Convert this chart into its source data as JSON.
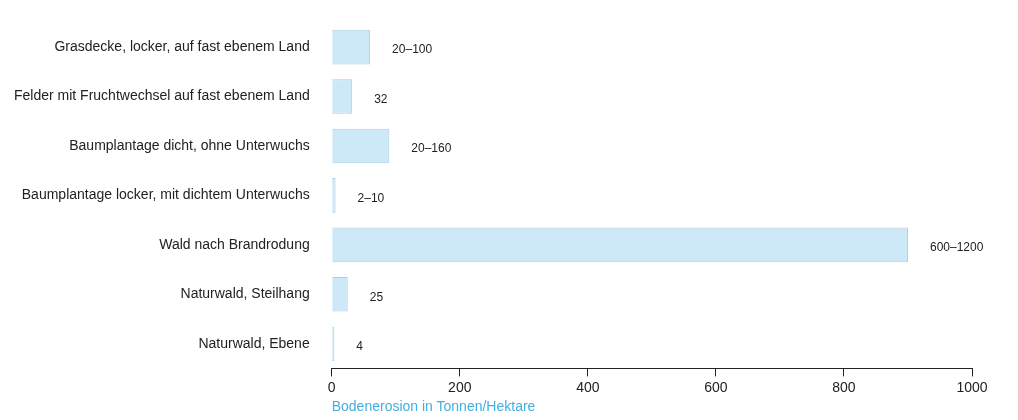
{
  "chart_data": {
    "type": "bar",
    "orientation": "horizontal",
    "xlabel": "Bodenerosion in Tonnen/Hektare",
    "categories": [
      "Grasdecke, locker, auf fast ebenem Land",
      "Felder mit Fruchtwechsel auf fast ebenem Land",
      "Baumplantage dicht, ohne Unterwuchs",
      "Baumplantage locker, mit dichtem Unterwuchs",
      "Wald nach Brandrodung",
      "Naturwald, Steilhang",
      "Naturwald, Ebene"
    ],
    "values": [
      60,
      32,
      90,
      6,
      900,
      25,
      4
    ],
    "value_labels": [
      "20–100",
      "32",
      "20–160",
      "2–10",
      "600–1200",
      "25",
      "4"
    ],
    "color": "#cde9f7",
    "xlim": [
      0,
      1000
    ],
    "xticks": [
      0,
      200,
      400,
      600,
      800,
      1000
    ],
    "legend": false
  }
}
